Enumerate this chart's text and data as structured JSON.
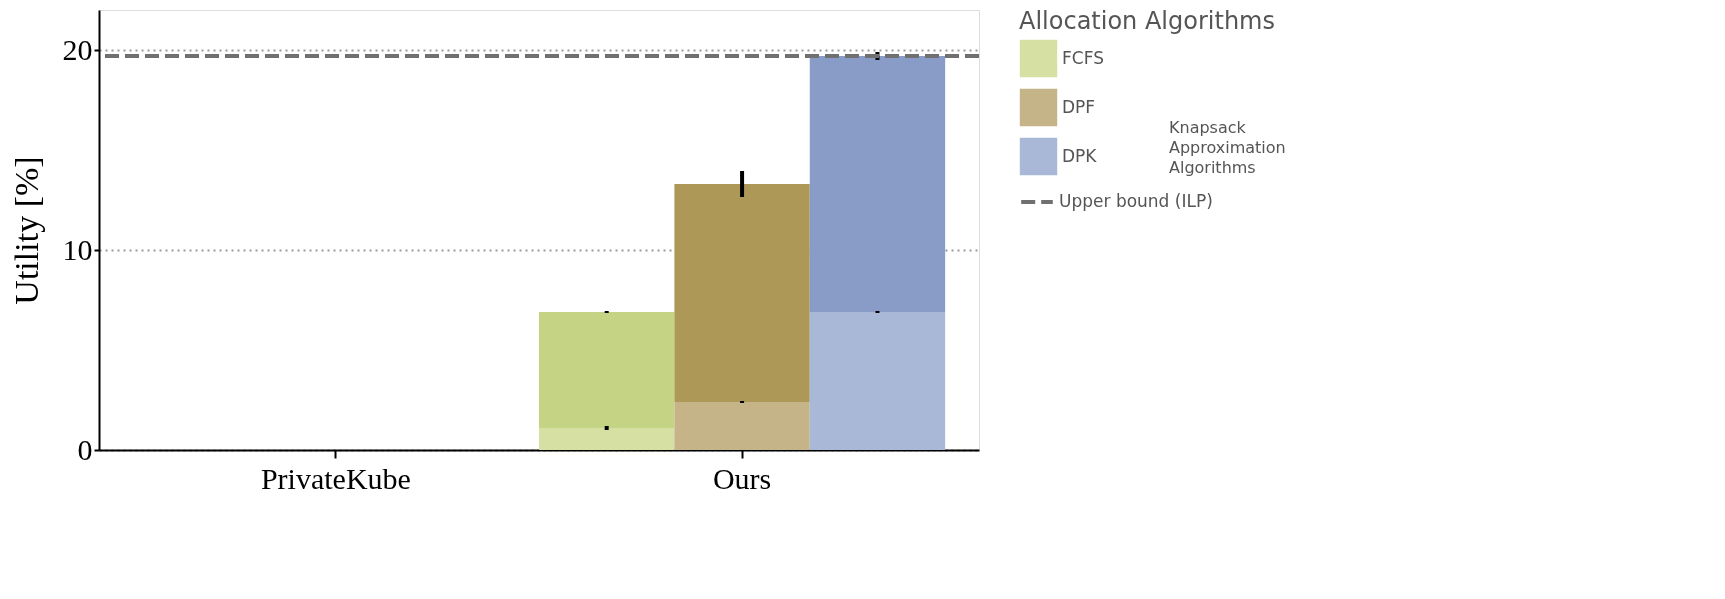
{
  "chart_data": {
    "type": "bar",
    "ylabel": "Utility [%]",
    "legend_title": "Allocation Algorithms",
    "categories": [
      null,
      "PrivateKube",
      null,
      null,
      "Ours",
      null
    ],
    "stacked": true,
    "series": [
      {
        "name": "FCFS",
        "color": "#d5e0a2",
        "values": [
          0,
          null,
          null,
          1.1,
          null,
          null
        ],
        "errors": [
          null,
          null,
          null,
          0.1,
          null,
          null
        ]
      },
      {
        "color": "#c5d385",
        "values": [
          0,
          null,
          null,
          5.8,
          null,
          null
        ],
        "errors": [
          null,
          null,
          null,
          0.05,
          null,
          null
        ]
      },
      {
        "name": "DPF",
        "color": "#c4b488",
        "values": [
          null,
          0,
          null,
          null,
          2.4,
          null
        ],
        "errors": [
          null,
          null,
          null,
          null,
          0.05,
          null
        ]
      },
      {
        "color": "#ae9858",
        "values": [
          null,
          0,
          null,
          null,
          10.9,
          null
        ],
        "errors": [
          null,
          null,
          null,
          null,
          0.65,
          null
        ]
      },
      {
        "name": "DPK",
        "color": "#a9b8d7",
        "values": [
          null,
          null,
          0,
          null,
          null,
          6.9
        ],
        "errors": [
          null,
          null,
          null,
          null,
          null,
          0.05
        ]
      },
      {
        "color": "#889cc7",
        "values": [
          null,
          null,
          0,
          null,
          null,
          12.8
        ],
        "errors": [
          null,
          null,
          null,
          null,
          null,
          0.2
        ]
      }
    ],
    "ylim": [
      0,
      22
    ],
    "yticks": [
      0,
      10,
      20
    ],
    "grid": "y",
    "ref_lines": [
      {
        "axis": "y",
        "value": 19.7,
        "label": "Upper bound (ILP)",
        "color": "#707070",
        "line_style": "dashed"
      }
    ],
    "annotations": [
      "Knapsack Approximation Algorithms"
    ],
    "legend": "right"
  }
}
